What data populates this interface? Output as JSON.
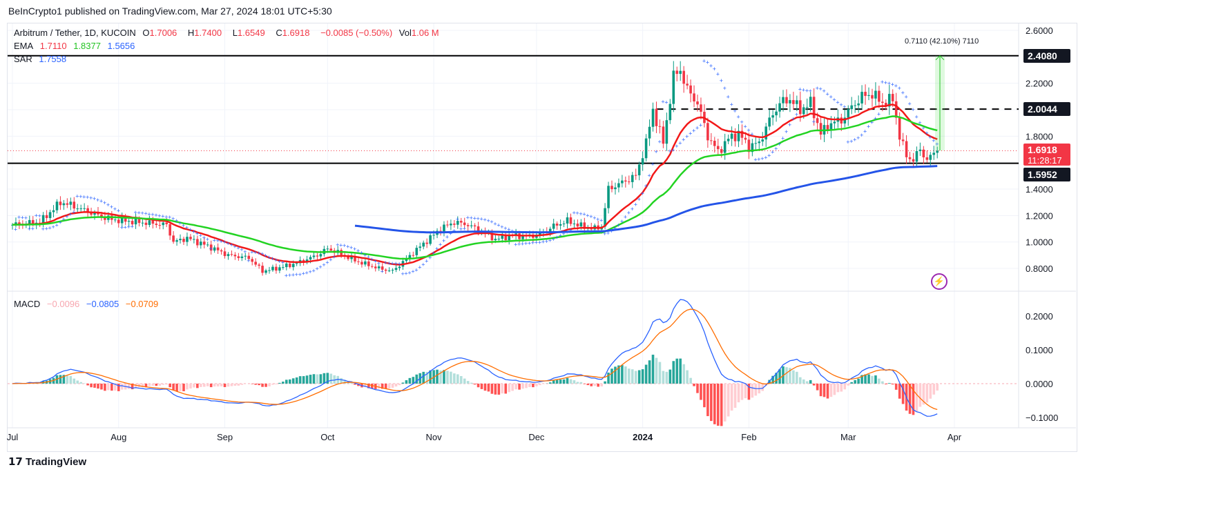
{
  "publisher": "BeInCrypto1 published on TradingView.com, Mar 27, 2024 18:01 UTC+5:30",
  "legend": {
    "symbol": "Arbitrum / Tether, 1D, KUCOIN",
    "o_label": "O",
    "open": "1.7006",
    "h_label": "H",
    "high": "1.7400",
    "l_label": "L",
    "low": "1.6549",
    "c_label": "C",
    "close": "1.6918",
    "change": "−0.0085 (−0.50%)",
    "vol_label": "Vol",
    "vol": "1.06 M",
    "ema_label": "EMA",
    "ema20": "1.7110",
    "ema50": "1.8377",
    "ema200": "1.5656",
    "sar_label": "SAR",
    "sar": "1.7558",
    "macd_label": "MACD",
    "macd_hist": "−0.0096",
    "macd_line": "−0.0805",
    "macd_signal": "−0.0709"
  },
  "levels": {
    "resistance": "2.4080",
    "mid": "2.0044",
    "support": "1.5952",
    "last": "1.6918",
    "countdown": "11:28:17"
  },
  "measure": {
    "label": "0.7110 (42.10%) 7110"
  },
  "branding": {
    "logo": "TradingView"
  },
  "colors": {
    "up": "#089981",
    "down": "#f23645",
    "ema20": "#f21818",
    "ema50": "#22d322",
    "ema200": "#2454e8",
    "sar": "#2962ff",
    "macd": "#2962ff",
    "signal": "#ff6d00"
  },
  "chart_data": {
    "type": "candlestick",
    "title": "Arbitrum / Tether, 1D, KUCOIN",
    "x_unit": "days since Jul 1 2023",
    "close_keypoints": [
      [
        0,
        1.13
      ],
      [
        8,
        1.15
      ],
      [
        14,
        1.3
      ],
      [
        17,
        1.28
      ],
      [
        23,
        1.22
      ],
      [
        29,
        1.17
      ],
      [
        37,
        1.15
      ],
      [
        45,
        1.13
      ],
      [
        47,
        1.0
      ],
      [
        51,
        1.03
      ],
      [
        57,
        0.97
      ],
      [
        63,
        0.9
      ],
      [
        69,
        0.88
      ],
      [
        73,
        0.78
      ],
      [
        77,
        0.8
      ],
      [
        83,
        0.84
      ],
      [
        89,
        0.9
      ],
      [
        92,
        0.95
      ],
      [
        95,
        0.92
      ],
      [
        101,
        0.85
      ],
      [
        107,
        0.8
      ],
      [
        111,
        0.78
      ],
      [
        117,
        0.92
      ],
      [
        125,
        1.1
      ],
      [
        129,
        1.15
      ],
      [
        133,
        1.13
      ],
      [
        137,
        1.08
      ],
      [
        141,
        1.02
      ],
      [
        146,
        1.05
      ],
      [
        150,
        1.04
      ],
      [
        154,
        1.06
      ],
      [
        158,
        1.12
      ],
      [
        162,
        1.16
      ],
      [
        166,
        1.12
      ],
      [
        170,
        1.1
      ],
      [
        172,
        1.12
      ],
      [
        174,
        1.4
      ],
      [
        178,
        1.45
      ],
      [
        182,
        1.5
      ],
      [
        185,
        1.75
      ],
      [
        187,
        2.0
      ],
      [
        190,
        1.75
      ],
      [
        193,
        2.25
      ],
      [
        195,
        2.3
      ],
      [
        197,
        2.15
      ],
      [
        200,
        2.05
      ],
      [
        203,
        1.8
      ],
      [
        206,
        1.68
      ],
      [
        209,
        1.78
      ],
      [
        212,
        1.82
      ],
      [
        215,
        1.72
      ],
      [
        218,
        1.75
      ],
      [
        221,
        1.92
      ],
      [
        224,
        2.05
      ],
      [
        227,
        2.08
      ],
      [
        230,
        2.0
      ],
      [
        233,
        2.05
      ],
      [
        236,
        1.82
      ],
      [
        239,
        1.9
      ],
      [
        242,
        1.92
      ],
      [
        245,
        2.02
      ],
      [
        248,
        2.1
      ],
      [
        251,
        2.12
      ],
      [
        254,
        2.05
      ],
      [
        257,
        2.08
      ],
      [
        259,
        1.8
      ],
      [
        261,
        1.65
      ],
      [
        263,
        1.62
      ],
      [
        265,
        1.7
      ],
      [
        267,
        1.62
      ],
      [
        270,
        1.69
      ]
    ],
    "price_axis": {
      "ticks": [
        "2.6000",
        "2.2000",
        "1.8000",
        "1.4000",
        "1.2000",
        "1.0000",
        "0.8000"
      ],
      "range": [
        0.7,
        2.65
      ]
    },
    "macd_axis": {
      "ticks": [
        "0.2000",
        "0.1000",
        "0.0000",
        "−0.1000"
      ],
      "range": [
        -0.13,
        0.26
      ]
    },
    "x_ticks": [
      {
        "day": 0,
        "label": "Jul"
      },
      {
        "day": 31,
        "label": "Aug"
      },
      {
        "day": 62,
        "label": "Sep"
      },
      {
        "day": 92,
        "label": "Oct"
      },
      {
        "day": 123,
        "label": "Nov"
      },
      {
        "day": 153,
        "label": "Dec"
      },
      {
        "day": 184,
        "label": "2024"
      },
      {
        "day": 215,
        "label": "Feb"
      },
      {
        "day": 244,
        "label": "Mar"
      },
      {
        "day": 275,
        "label": "Apr"
      }
    ],
    "horizontal_lines": [
      {
        "price": 2.408,
        "style": "solid"
      },
      {
        "price": 2.0044,
        "style": "dashed",
        "from_day": 188
      },
      {
        "price": 1.5952,
        "style": "solid"
      }
    ],
    "ema_periods": [
      20,
      50,
      200
    ]
  }
}
